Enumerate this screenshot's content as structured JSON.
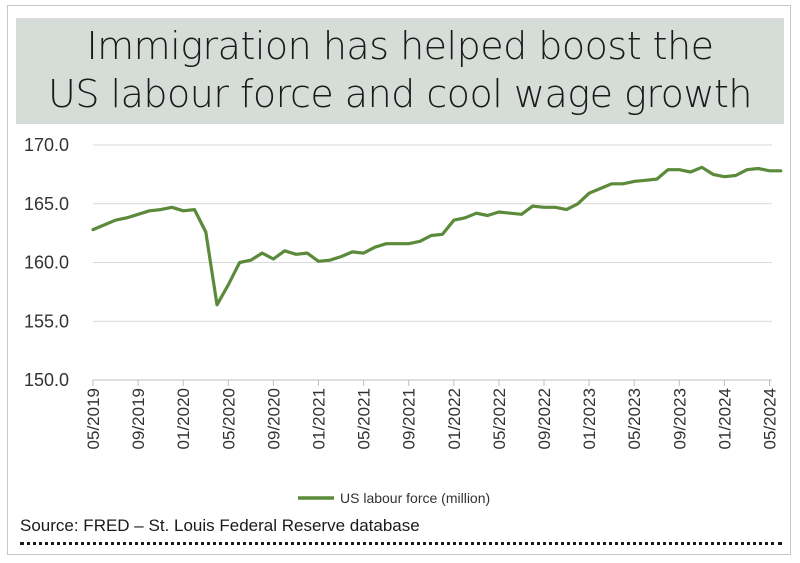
{
  "title": {
    "line1": "Immigration has helped boost the",
    "line2": "US labour force and cool wage growth"
  },
  "source": "Source: FRED – St. Louis Federal Reserve database",
  "colors": {
    "line": "#5b8a3a",
    "title_bg": "#d6ddd8",
    "grid": "#d9d9d9"
  },
  "chart_data": {
    "type": "line",
    "title": "",
    "xlabel": "",
    "ylabel": "",
    "ylim": [
      150,
      170
    ],
    "y_ticks": [
      "150.0",
      "155.0",
      "160.0",
      "165.0",
      "170.0"
    ],
    "x_ticks": [
      "05/2019",
      "09/2019",
      "01/2020",
      "05/2020",
      "09/2020",
      "01/2021",
      "05/2021",
      "09/2021",
      "01/2022",
      "05/2022",
      "09/2022",
      "01/2023",
      "05/2023",
      "09/2023",
      "01/2024",
      "05/2024"
    ],
    "grid": true,
    "legend_position": "bottom",
    "series": [
      {
        "name": "US labour force (million)",
        "x": [
          "05/2019",
          "06/2019",
          "07/2019",
          "08/2019",
          "09/2019",
          "10/2019",
          "11/2019",
          "12/2019",
          "01/2020",
          "02/2020",
          "03/2020",
          "04/2020",
          "05/2020",
          "06/2020",
          "07/2020",
          "08/2020",
          "09/2020",
          "10/2020",
          "11/2020",
          "12/2020",
          "01/2021",
          "02/2021",
          "03/2021",
          "04/2021",
          "05/2021",
          "06/2021",
          "07/2021",
          "08/2021",
          "09/2021",
          "10/2021",
          "11/2021",
          "12/2021",
          "01/2022",
          "02/2022",
          "03/2022",
          "04/2022",
          "05/2022",
          "06/2022",
          "07/2022",
          "08/2022",
          "09/2022",
          "10/2022",
          "11/2022",
          "12/2022",
          "01/2023",
          "02/2023",
          "03/2023",
          "04/2023",
          "05/2023",
          "06/2023",
          "07/2023",
          "08/2023",
          "09/2023",
          "10/2023",
          "11/2023",
          "12/2023",
          "01/2024",
          "02/2024",
          "03/2024",
          "04/2024",
          "05/2024",
          "06/2024"
        ],
        "values": [
          162.8,
          163.2,
          163.6,
          163.8,
          164.1,
          164.4,
          164.5,
          164.7,
          164.4,
          164.5,
          162.6,
          156.4,
          158.1,
          160.0,
          160.2,
          160.8,
          160.3,
          161.0,
          160.7,
          160.8,
          160.1,
          160.2,
          160.5,
          160.9,
          160.8,
          161.3,
          161.6,
          161.6,
          161.6,
          161.8,
          162.3,
          162.4,
          163.6,
          163.8,
          164.2,
          164.0,
          164.3,
          164.2,
          164.1,
          164.8,
          164.7,
          164.7,
          164.5,
          165.0,
          165.9,
          166.3,
          166.7,
          166.7,
          166.9,
          167.0,
          167.1,
          167.9,
          167.9,
          167.7,
          168.1,
          167.5,
          167.3,
          167.4,
          167.9,
          168.0,
          167.8,
          167.8
        ]
      }
    ]
  }
}
